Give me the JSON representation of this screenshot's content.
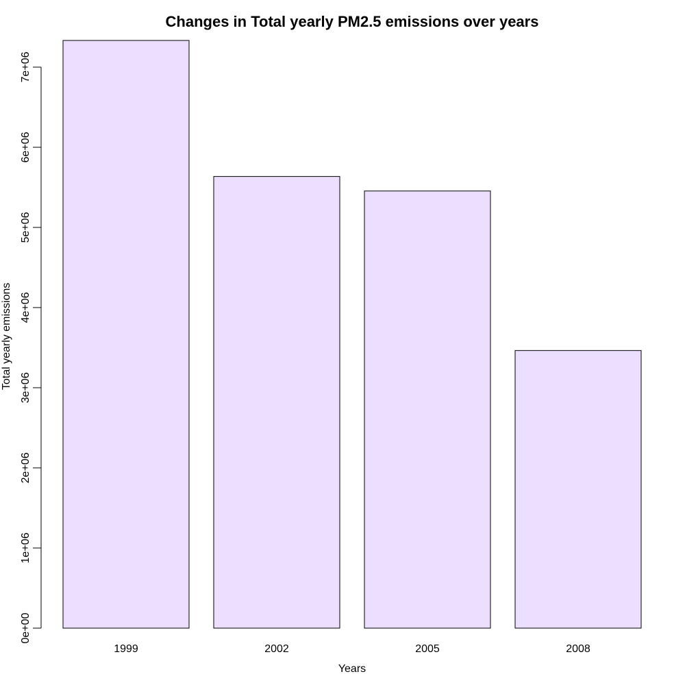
{
  "chart_data": {
    "type": "bar",
    "title": "Changes in Total yearly PM2.5 emissions over years",
    "xlabel": "Years",
    "ylabel": "Total yearly emissions",
    "categories": [
      "1999",
      "2002",
      "2005",
      "2008"
    ],
    "values": [
      7332967,
      5635780,
      5454703,
      3464206
    ],
    "ylim": [
      0,
      7332967
    ],
    "yticks": [
      0,
      1000000,
      2000000,
      3000000,
      4000000,
      5000000,
      6000000,
      7000000
    ],
    "ytick_labels": [
      "0e+00",
      "1e+06",
      "2e+06",
      "3e+06",
      "4e+06",
      "5e+06",
      "6e+06",
      "7e+06"
    ],
    "bar_color": "#ebdefe",
    "bar_border_color": "#000000",
    "grid": false,
    "legend": "none"
  }
}
